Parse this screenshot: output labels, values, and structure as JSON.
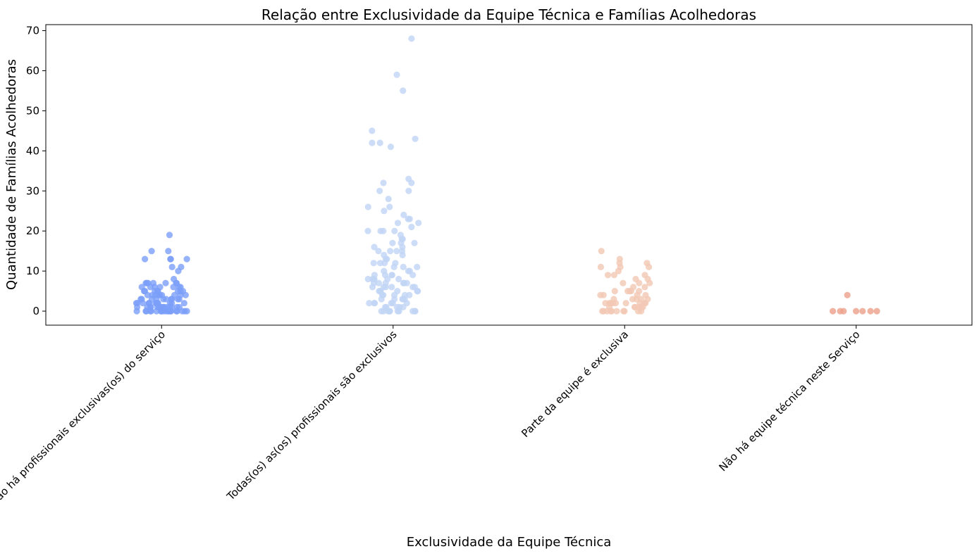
{
  "chart_data": {
    "type": "scatter",
    "title": "Relação entre Exclusividade da Equipe Técnica e Famílias Acolhedoras",
    "xlabel": "Exclusividade da Equipe Técnica",
    "ylabel": "Quantidade de Famílias Acolhedoras",
    "ylim": [
      -3.5,
      71.5
    ],
    "yticks": [
      0,
      10,
      20,
      30,
      40,
      50,
      60,
      70
    ],
    "grid": false,
    "legend": "none",
    "categories": [
      "Não há profissionais exclusivas(os) do serviço",
      "Todas(os) as(os) profissionais são exclusivos",
      "Parte da equipe é exclusiva",
      "Não há equipe técnica neste Serviço"
    ],
    "series": [
      {
        "color": "#7b9ff9",
        "values": [
          19,
          15,
          15,
          13,
          13,
          13,
          13,
          11,
          11,
          10,
          8,
          7,
          7,
          7,
          7,
          7,
          7,
          7,
          6,
          6,
          6,
          6,
          6,
          6,
          6,
          5,
          5,
          5,
          5,
          5,
          5,
          5,
          5,
          4,
          4,
          4,
          4,
          4,
          4,
          4,
          4,
          4,
          3,
          3,
          3,
          3,
          3,
          3,
          3,
          3,
          3,
          3,
          2,
          2,
          2,
          2,
          2,
          2,
          2,
          2,
          2,
          2,
          2,
          2,
          1,
          1,
          1,
          1,
          1,
          1,
          1,
          1,
          1,
          1,
          1,
          1,
          1,
          1,
          1,
          0,
          0,
          0,
          0,
          0,
          0,
          0,
          0,
          0,
          0,
          0,
          0,
          0,
          0,
          0,
          0,
          0,
          0,
          0,
          0
        ]
      },
      {
        "color": "#c0d4f5",
        "values": [
          68,
          59,
          55,
          45,
          43,
          42,
          42,
          41,
          33,
          32,
          32,
          30,
          30,
          28,
          26,
          26,
          25,
          24,
          23,
          23,
          22,
          22,
          21,
          20,
          20,
          20,
          20,
          19,
          18,
          18,
          17,
          17,
          17,
          16,
          16,
          15,
          15,
          15,
          15,
          14,
          14,
          13,
          13,
          12,
          12,
          12,
          12,
          11,
          11,
          11,
          10,
          10,
          10,
          9,
          9,
          9,
          9,
          9,
          8,
          8,
          8,
          8,
          8,
          8,
          7,
          7,
          7,
          7,
          7,
          7,
          6,
          6,
          6,
          6,
          6,
          6,
          5,
          5,
          5,
          5,
          5,
          5,
          4,
          4,
          4,
          4,
          4,
          3,
          3,
          3,
          3,
          3,
          2,
          2,
          2,
          2,
          2,
          2,
          1,
          1,
          1,
          1,
          1,
          0,
          0,
          0,
          0,
          0,
          0,
          0,
          0,
          0,
          0
        ]
      },
      {
        "color": "#f2c8b4",
        "values": [
          15,
          13,
          12,
          12,
          11,
          11,
          11,
          10,
          9,
          9,
          9,
          8,
          8,
          7,
          7,
          7,
          6,
          6,
          5,
          5,
          5,
          5,
          5,
          4,
          4,
          4,
          4,
          3,
          3,
          3,
          3,
          3,
          2,
          2,
          2,
          2,
          2,
          2,
          2,
          2,
          2,
          1,
          1,
          1,
          1,
          1,
          1,
          0,
          0,
          0,
          0,
          0,
          0,
          0,
          0,
          0,
          0
        ]
      },
      {
        "color": "#eda08a",
        "values": [
          4,
          0,
          0,
          0,
          0,
          0,
          0,
          0
        ]
      }
    ]
  }
}
